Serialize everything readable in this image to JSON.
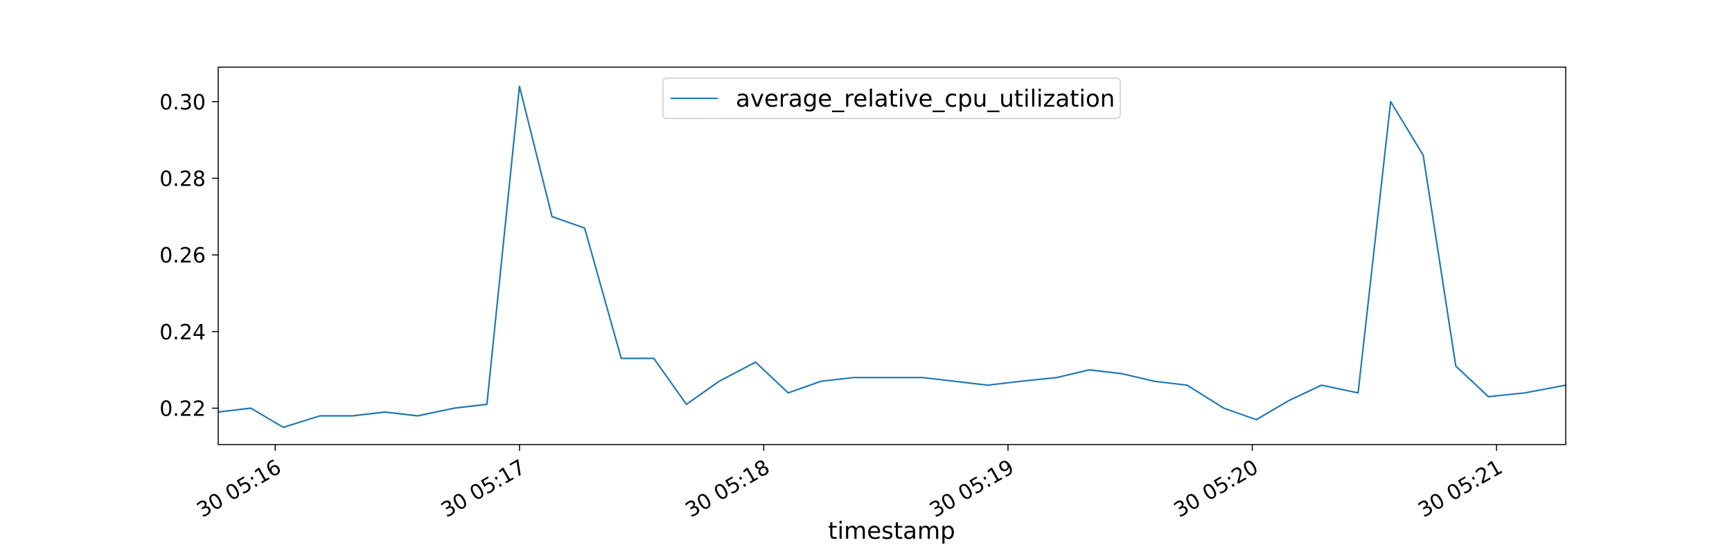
{
  "chart_data": {
    "type": "line",
    "title": "",
    "xlabel": "timestamp",
    "ylabel": "",
    "x_tick_labels": [
      "30 05:16",
      "30 05:17",
      "30 05:18",
      "30 05:19",
      "30 05:20",
      "30 05:21"
    ],
    "y_tick_labels": [
      "0.22",
      "0.24",
      "0.26",
      "0.28",
      "0.30"
    ],
    "y_ticks": [
      0.22,
      0.24,
      0.26,
      0.28,
      0.3
    ],
    "ylim": [
      0.2105,
      0.309
    ],
    "xlim": [
      "05:15:46",
      "05:21:17"
    ],
    "legend": {
      "placement": "upper center",
      "entries": [
        "average_relative_cpu_utilization"
      ]
    },
    "grid": false,
    "colors": {
      "series": "#1f77b4"
    },
    "series": [
      {
        "name": "average_relative_cpu_utilization",
        "x": [
          "05:15:46",
          "05:15:54",
          "05:16:02",
          "05:16:11",
          "05:16:19",
          "05:16:27",
          "05:16:35",
          "05:16:44",
          "05:16:52",
          "05:17:00",
          "05:17:08",
          "05:17:16",
          "05:17:25",
          "05:17:33",
          "05:17:41",
          "05:17:49",
          "05:17:58",
          "05:18:06",
          "05:18:14",
          "05:18:22",
          "05:18:30",
          "05:18:39",
          "05:18:47",
          "05:18:55",
          "05:19:03",
          "05:19:12",
          "05:19:20",
          "05:19:28",
          "05:19:36",
          "05:19:44",
          "05:19:53",
          "05:20:01",
          "05:20:09",
          "05:20:17",
          "05:20:26",
          "05:20:34",
          "05:20:42",
          "05:20:50",
          "05:20:58",
          "05:21:07",
          "05:21:17"
        ],
        "values": [
          0.219,
          0.22,
          0.215,
          0.218,
          0.218,
          0.219,
          0.218,
          0.22,
          0.221,
          0.304,
          0.27,
          0.267,
          0.233,
          0.233,
          0.221,
          0.227,
          0.232,
          0.224,
          0.227,
          0.228,
          0.228,
          0.228,
          0.227,
          0.226,
          0.227,
          0.228,
          0.23,
          0.229,
          0.227,
          0.226,
          0.22,
          0.217,
          0.222,
          0.226,
          0.224,
          0.3,
          0.286,
          0.231,
          0.223,
          0.224,
          0.226
        ]
      }
    ]
  }
}
